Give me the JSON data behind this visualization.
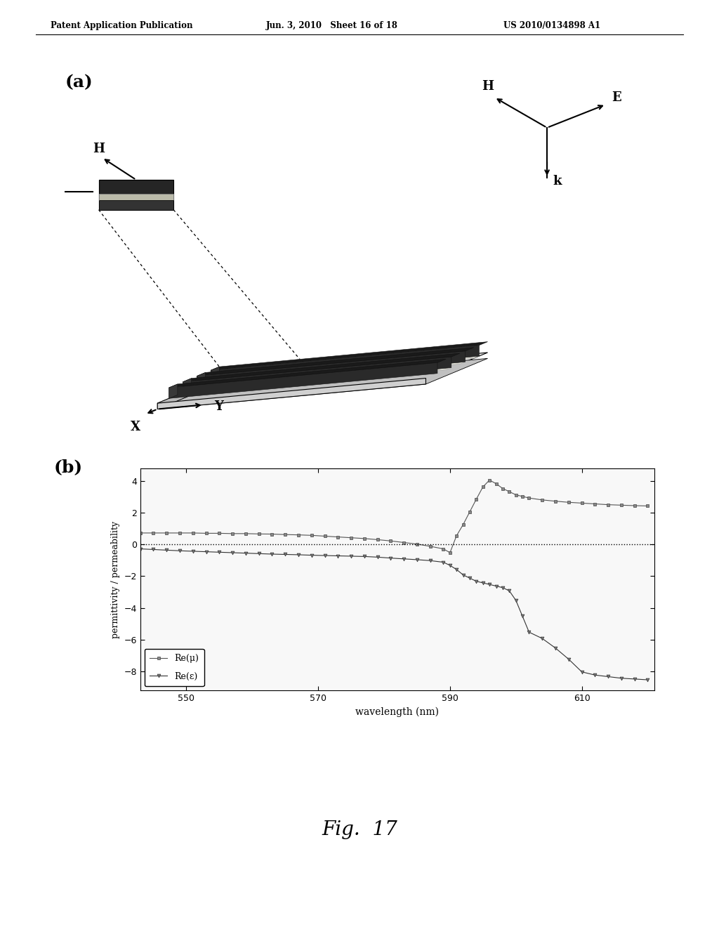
{
  "header_left": "Patent Application Publication",
  "header_center": "Jun. 3, 2010   Sheet 16 of 18",
  "header_right": "US 2010/0134898 A1",
  "fig_caption": "Fig.  17",
  "panel_a_label": "(a)",
  "panel_b_label": "(b)",
  "xlabel": "wavelength (nm)",
  "ylabel": "permittivity / permeability",
  "xlim": [
    543,
    621
  ],
  "ylim": [
    -9.2,
    4.8
  ],
  "yticks": [
    -8,
    -6,
    -4,
    -2,
    0,
    2,
    4
  ],
  "xticks": [
    550,
    570,
    590,
    610
  ],
  "legend_mu": "Re(μ)",
  "legend_eps": "Re(ε)",
  "mu_x": [
    543,
    545,
    547,
    549,
    551,
    553,
    555,
    557,
    559,
    561,
    563,
    565,
    567,
    569,
    571,
    573,
    575,
    577,
    579,
    581,
    583,
    585,
    587,
    589,
    590,
    591,
    592,
    593,
    594,
    595,
    596,
    597,
    598,
    599,
    600,
    601,
    602,
    604,
    606,
    608,
    610,
    612,
    614,
    616,
    618,
    620
  ],
  "mu_y": [
    0.72,
    0.72,
    0.72,
    0.72,
    0.72,
    0.7,
    0.7,
    0.68,
    0.68,
    0.66,
    0.65,
    0.62,
    0.6,
    0.57,
    0.52,
    0.47,
    0.42,
    0.37,
    0.3,
    0.22,
    0.12,
    0.02,
    -0.12,
    -0.28,
    -0.52,
    0.55,
    1.25,
    2.05,
    2.85,
    3.62,
    4.05,
    3.82,
    3.52,
    3.32,
    3.12,
    3.02,
    2.92,
    2.8,
    2.72,
    2.65,
    2.6,
    2.55,
    2.5,
    2.47,
    2.44,
    2.42
  ],
  "eps_x": [
    543,
    545,
    547,
    549,
    551,
    553,
    555,
    557,
    559,
    561,
    563,
    565,
    567,
    569,
    571,
    573,
    575,
    577,
    579,
    581,
    583,
    585,
    587,
    589,
    590,
    591,
    592,
    593,
    594,
    595,
    596,
    597,
    598,
    599,
    600,
    601,
    602,
    604,
    606,
    608,
    610,
    612,
    614,
    616,
    618,
    620
  ],
  "eps_y": [
    -0.28,
    -0.32,
    -0.36,
    -0.4,
    -0.43,
    -0.46,
    -0.49,
    -0.52,
    -0.55,
    -0.58,
    -0.61,
    -0.63,
    -0.65,
    -0.68,
    -0.7,
    -0.72,
    -0.74,
    -0.76,
    -0.8,
    -0.86,
    -0.91,
    -0.96,
    -1.02,
    -1.12,
    -1.32,
    -1.58,
    -1.92,
    -2.12,
    -2.32,
    -2.42,
    -2.52,
    -2.62,
    -2.72,
    -2.92,
    -3.52,
    -4.52,
    -5.52,
    -5.92,
    -6.52,
    -7.22,
    -8.02,
    -8.22,
    -8.32,
    -8.42,
    -8.47,
    -8.52
  ],
  "background_color": "#ffffff"
}
